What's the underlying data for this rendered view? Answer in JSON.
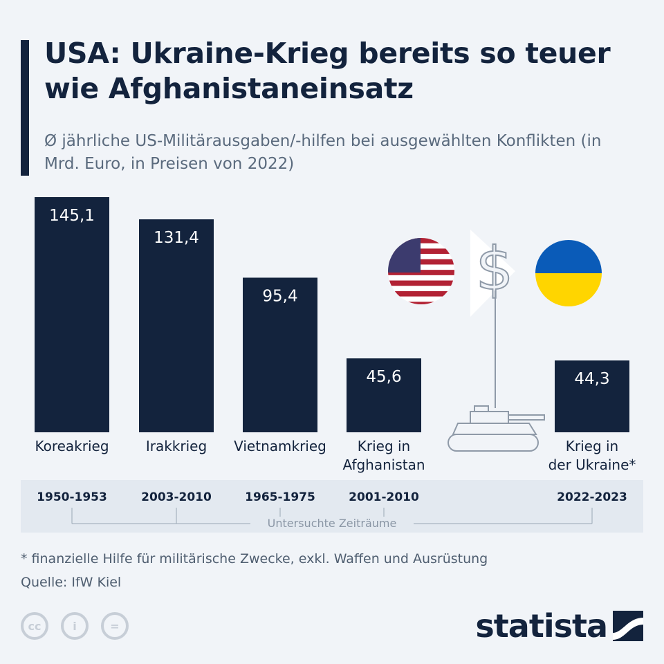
{
  "title": "USA: Ukraine-Krieg bereits so teuer wie Afghanistaneinsatz",
  "subtitle": "Ø jährliche US-Militärausgaben/-hilfen bei ausgewählten Konflikten (in Mrd. Euro, in Preisen von 2022)",
  "chart_data": {
    "type": "bar",
    "categories": [
      "Koreakrieg",
      "Irakkrieg",
      "Vietnamkrieg",
      "Krieg in Afghanistan",
      "Krieg in der Ukraine*"
    ],
    "values": [
      145.1,
      131.4,
      95.4,
      45.6,
      44.3
    ],
    "value_labels": [
      "145,1",
      "131,4",
      "95,4",
      "45,6",
      "44,3"
    ],
    "periods": [
      "1950-1953",
      "2003-2010",
      "1965-1975",
      "2001-2010",
      "2022-2023"
    ],
    "period_axis_label": "Untersuchte Zeiträume",
    "ylim": [
      0,
      150
    ],
    "grid": false,
    "bar_color": "#13233d"
  },
  "footnote": "* finanzielle Hilfe für militärische Zwecke, exkl. Waffen und Ausrüstung",
  "source": "Quelle: IfW Kiel",
  "brand": "statista",
  "icons": [
    "us-flag-icon",
    "dollar-icon",
    "ukraine-flag-icon",
    "tank-icon",
    "cc-icon",
    "attribution-icon",
    "no-derivatives-icon"
  ],
  "colors": {
    "navy": "#13233d",
    "ukraine_blue": "#0a5bb8",
    "ukraine_yellow": "#ffd500",
    "us_red": "#b22234",
    "us_blue": "#3c3b6e"
  }
}
